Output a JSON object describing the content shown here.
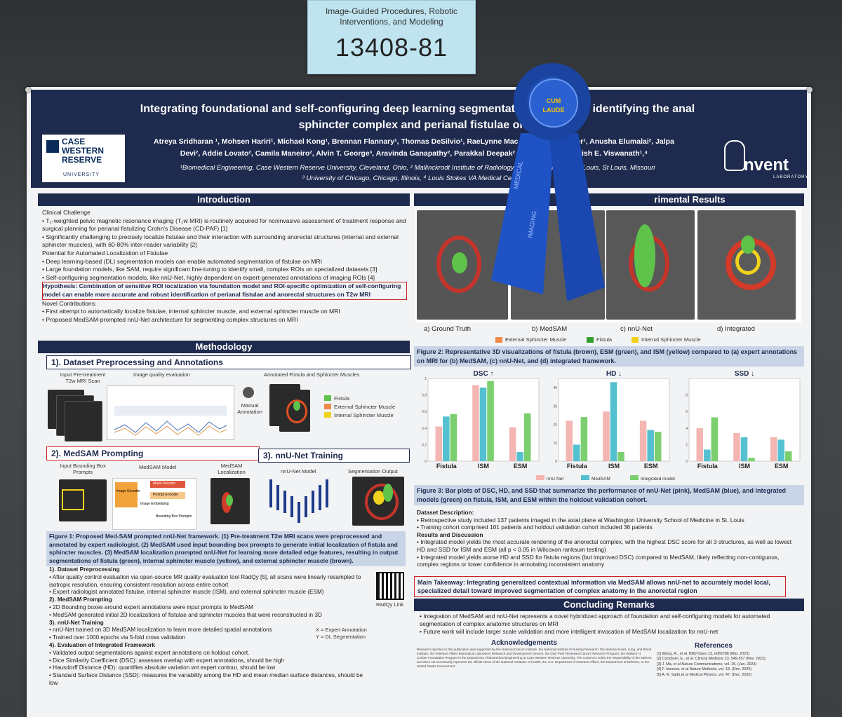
{
  "card": {
    "category": "Image-Guided Procedures, Robotic\nInterventions, and Modeling",
    "number": "13408-81"
  },
  "poster": {
    "title_line1": "Integrating foundational and self-configuring deep learning segmentat",
    "title_line1b": "or identifying the anal",
    "title_line2": "sphincter complex and perianal fistulae on p",
    "authors_line1": "Atreya Sridharan ¹, Mohsen Hariri¹, Michael Kong¹, Brennan Flannary¹, Thomas DeSilvio¹, RaeLynne Mac",
    "authors_line1b": "Parker¹, Anusha Elumalai², Jalpa",
    "authors_line2": "Devi², Addie Lovato², Camila Maneiro², Alvin T. George³, Aravinda Ganapathy², Parakkal Deepak²",
    "authors_line2b": "lard², Satish E. Viswanath¹,⁴",
    "affil_line1": "¹Biomedical Engineering, Case Western Reserve University, Cleveland, Ohio, ² Mallinckrodt Institute of Radiology, W",
    "affil_line1b": "rsity in St. Louis, St Louis, Missouri",
    "affil_line2": "³ University of Chicago, Chicago, Illinois, ⁴ Louis Stokes VA Medical Center, Cl",
    "cwru_logo": "CASE\nWESTERN\nRESERVE",
    "cwru_sub": "UNIVERSITY",
    "invent_logo": "nvent",
    "invent_sub": "LABORATORY"
  },
  "ribbon": {
    "text": "CUM\nLAUDE",
    "tail1": "MEDICAL",
    "tail2": "IMAGING"
  },
  "intro": {
    "header": "Introduction",
    "clinical": "Clinical Challenge",
    "b1": "T₂-weighted pelvic magnetic resonance imaging (T₂w MRI) is routinely acquired for noninvasive assessment of treatment response and surgical planning for perianal fistulizing Crohn's Disease (CD-PAF) [1]",
    "b2": "Significantly challenging to precisely localize fistulae and their interaction with surrounding anorectal structures (internal and external sphincter muscles), with 60-80% inter-reader variability [2]",
    "potential": "Potential for Automated Localization of Fistulae",
    "b3": "Deep learning-based (DL) segmentation models can enable automated segmentation of fistulae on MRI",
    "b4": "Large foundation models, like SAM, require significant fine-tuning to identify small, complex ROIs on specialized datasets [3]",
    "b5": "Self-configuring segmentation models, like nnU-Net, highly dependent on expert-generated annotations of imaging ROIs [4]",
    "hypothesis": "Hypothesis: Combination of sensitive ROI localization via foundation model and ROI-specific optimization of self-configuring model can enable more accurate and robust identification of perianal fistulae and anorectal structures on T2w MRI",
    "novel": "Novel Contributions:",
    "b6": "First attempt to automatically localize fistulae, internal sphincter muscle, and external sphincter muscle on MRI",
    "b7": "Proposed MedSAM-prompted nnU-Net architecture for segmenting complex structures on MRI"
  },
  "methods": {
    "header": "Methodology",
    "s1": "1). Dataset Preprocessing and Annotations",
    "input_label": "Input Pre-treatment T2w MRI Scan",
    "iqe": "Image quality evaluation",
    "manual": "Manual Annotation",
    "annotated": "Annotated Fistula and Sphincter Muscles",
    "leg_fistula": "Fistula",
    "leg_esm": "External Sphincter Muscle",
    "leg_ism": "Internal Sphincter Muscle",
    "s2": "2). MedSAM Prompting",
    "s3": "3). nnU-Net Training",
    "bbox": "Input Bounding Box Prompts",
    "medsam_model": "MedSAM Model",
    "medsam_loc": "MedSAM Localization",
    "nnunet_model": "nnU-Net Model",
    "seg_out": "Segmentation Output",
    "img_enc": "Image Encoder",
    "mask_dec": "Mask Decoder",
    "prompt_enc": "Prompt Encoder",
    "img_embed": "Image Embedding",
    "bbox_prompt": "Bounding Box Prompts",
    "fig1": "Figure 1: Proposed Med-SAM prompted nnU-Net framework. (1) Pre-treatment T2w MRI scans were preprocessed and annotated by expert radiologist. (2) MedSAM used input bounding box prompts to generate initial localization of fistula and sphincter muscles. (3) MedSAM localization prompted nnU-Net for learning more detailed edge features, resulting in output segmentations of fistula (green), internal sphincter muscle (yellow), and external sphincter muscle (brown).",
    "m1": "1). Dataset Preprocessing",
    "m1a": "After quality control evaluation via open-source MR quality evaluation tool RadQy [5], all scans were linearly resampled to isotropic resolution, ensuring consistent resolution across entire cohort",
    "m1b": "Expert radiologist annotated fistulae, internal sphincter muscle (ISM), and external sphincter muscle (ESM)",
    "m2": "2). MedSAM Prompting",
    "m2a": "2D Bounding boxes around expert annotations were input prompts to MedSAM",
    "m2b": "MedSAM generated initial 2D localizations of fistulae and sphincter muscles that were reconstructed in 3D",
    "m3": "3). nnU-Net Training",
    "m3a": "nnU-Net trained on 3D MedSAM localization to learn more detailed spatial annotations",
    "m3b": "Trained over 1000 epochs via 5-fold cross validation",
    "m4": "4). Evaluation of Integrated Framework",
    "m4a": "Validated output segmentations against expert annotations on holdout cohort.",
    "m4b": "Dice Similarity Coefficient (DSC): assesses overlap with expert annotations, should be high",
    "m4c": "Hausdorff Distance (HD): quantifies absolute variation wrt expert contour, should be low",
    "m4d": "Standard Surface Distance (SSD): measures the variability among the HD and mean median surface distances, should be low",
    "radqy": "RadQy Link",
    "xexp": "X = Expert Annotation",
    "ydl": "Y = DL Segmentation"
  },
  "results": {
    "header_partial": "rimental Results",
    "panel_a": "a) Ground Truth",
    "panel_b": "b) MedSAM",
    "panel_c": "c) nnU-Net",
    "panel_d": "d) Integrated",
    "leg_esm": "External Sphincter Muscle",
    "leg_fistula": "Fistula",
    "leg_ism": "Internal Sphincter Muscle",
    "fig2": "Figure 2: Representative 3D visualizations of fistula (brown), ESM (green), and ISM (yellow) compared to (a) expert annotations on MRI for (b) MedSAM, (c) nnU-Net, and (d) integrated framework.",
    "fig3": "Figure 3: Bar plots of DSC, HD, and SSD that summarize the performance of nnU-Net (pink), MedSAM (blue), and integrated models (green) on fistula, ISM, and ESM within the holdout validation cohort.",
    "ds_head": "Dataset Description:",
    "ds1": "Retrospective study included 137 patients imaged in the axial plane at Washington University School of Medicine in St. Louis",
    "ds2": "Training cohort comprised 101 patients and holdout validation cohort included 36 patients",
    "rd_head": "Results and Discussion",
    "rd1": "Integrated model yields the most accurate rendering of the anorectal complex, with the highest DSC score for all 3 structures, as well as lowest HD and SSD for ISM and ESM (all p < 0.05 in Wilcoxon ranksum testing)",
    "rd2": "Integrated model yields worse HD and SSD for fistula regions (but improved DSC) compared to MedSAM, likely reflecting non-contiguous, complex regions or lower confidence in annotating inconsistent anatomy",
    "takeaway": "Main Takeaway: Integrating generalized contextual information via MedSAM allows nnU-net to accurately model local, specialized detail toward improved segmentation of complex anatomy in the anorectal region"
  },
  "concl": {
    "header": "Concluding Remarks",
    "c1": "Integration of MedSAM and nnU-Net represents a novel hybridized approach of foundation and self-configuring models for automated segmentation of complex anatomic structures on MRI",
    "c2": "Future work will include larger scale validation and more intelligent invocation of MedSAM localization for nnU-net",
    "ack": "Acknowledgements",
    "refs": "References",
    "ack_text": "Research reported in this publication was supported by the National Cancer Institute, the National Institute of Nursing Research, the National Heart, Lung, and Blood Institute, the Veterans Affairs Biomedical Laboratory Research and Development Service, the DoD Peer Reviewed Cancer Research Program, the Wallace H. Coulter Foundation Program in the Department of Biomedical Engineering at Case Western Reserve University. The content is solely the responsibility of the authors and does not necessarily represent the official views of the National Institutes of Health, the U.S. Department of Veterans Affairs, the Department of Defense, or the United States Government.",
    "r1": "[1] Wang, R., et al. BMJ Open 13, e065786 (Mar. 2023).",
    "r2": "[2] Cockburn, E., et al. Clinical Medicine 23, 549-557 (Nov. 2023).",
    "r3": "[3] J. Ma, et al Nature Communications, vol. 15, (Jan. 2024)",
    "r4": "[4] F. Isensee, et al Nature Methods, vol. 18, (Dec. 2020)",
    "r5": "[5] A. R. Sadri,et al Medical Physics, vol. 47, (Dec. 2020)"
  },
  "chart_data": [
    {
      "type": "bar",
      "title": "DSC ↑",
      "categories": [
        "Fistula",
        "ISM",
        "ESM"
      ],
      "ylim": [
        0,
        1
      ],
      "yticks": [
        "0",
        "0.2",
        "0.4",
        "0.6",
        "0.8",
        "1"
      ],
      "series": [
        {
          "name": "nnU-Net",
          "values": [
            0.42,
            0.92,
            0.41
          ]
        },
        {
          "name": "MedSAM",
          "values": [
            0.54,
            0.89,
            0.11
          ]
        },
        {
          "name": "Integrated model",
          "values": [
            0.57,
            0.97,
            0.58
          ]
        }
      ]
    },
    {
      "type": "bar",
      "title": "HD ↓",
      "categories": [
        "Fistula",
        "ISM",
        "ESM"
      ],
      "ylim": [
        0,
        45
      ],
      "yticks": [
        "0",
        "10",
        "20",
        "30",
        "40"
      ],
      "series": [
        {
          "name": "nnU-Net",
          "values": [
            22,
            27,
            22
          ]
        },
        {
          "name": "MedSAM",
          "values": [
            9,
            43,
            17
          ]
        },
        {
          "name": "Integrated model",
          "values": [
            24,
            5,
            16
          ]
        }
      ]
    },
    {
      "type": "bar",
      "title": "SSD ↓",
      "categories": [
        "Fistula",
        "ISM",
        "ESM"
      ],
      "ylim": [
        0,
        10
      ],
      "yticks": [
        "0",
        "2",
        "4",
        "6",
        "8"
      ],
      "series": [
        {
          "name": "nnU-Net",
          "values": [
            4.0,
            3.4,
            2.9
          ]
        },
        {
          "name": "MedSAM",
          "values": [
            1.4,
            2.9,
            2.6
          ]
        },
        {
          "name": "Integrated model",
          "values": [
            5.3,
            0.4,
            1.2
          ]
        }
      ]
    }
  ],
  "colors": {
    "navy": "#1e2a4e",
    "pink": "#f4b6b3",
    "blue": "#55c0cf",
    "green": "#7ccf6e",
    "red": "#c22222"
  }
}
